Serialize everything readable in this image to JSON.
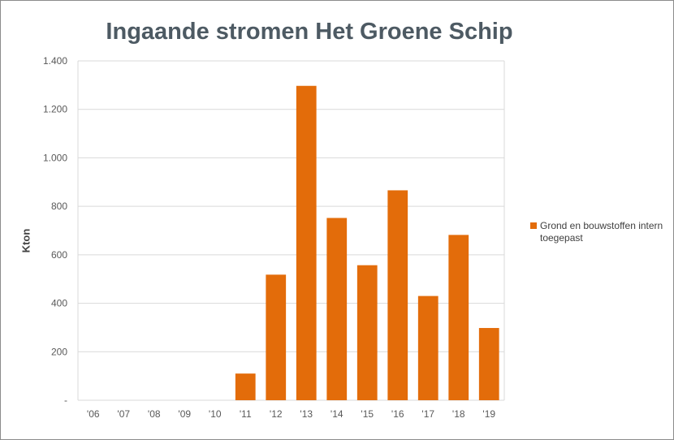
{
  "chart_data": {
    "type": "bar",
    "title": "Ingaande stromen Het Groene Schip",
    "xlabel": "",
    "ylabel": "Kton",
    "categories": [
      "'06",
      "'07",
      "'08",
      "'09",
      "'10",
      "'11",
      "'12",
      "'13",
      "'14",
      "'15",
      "'16",
      "'17",
      "'18",
      "'19"
    ],
    "series": [
      {
        "name": "Grond en bouwstoffen intern toegepast",
        "values": [
          0,
          0,
          0,
          0,
          0,
          110,
          518,
          1297,
          752,
          557,
          866,
          430,
          682,
          298
        ],
        "color": "#e36c0a"
      }
    ],
    "ylim": [
      0,
      1400
    ],
    "yticks": [
      {
        "value": 0,
        "label": "-"
      },
      {
        "value": 200,
        "label": "200"
      },
      {
        "value": 400,
        "label": "400"
      },
      {
        "value": 600,
        "label": "600"
      },
      {
        "value": 800,
        "label": "800"
      },
      {
        "value": 1000,
        "label": "1.000"
      },
      {
        "value": 1200,
        "label": "1.200"
      },
      {
        "value": 1400,
        "label": "1.400"
      }
    ],
    "grid": true,
    "legend_position": "right"
  }
}
